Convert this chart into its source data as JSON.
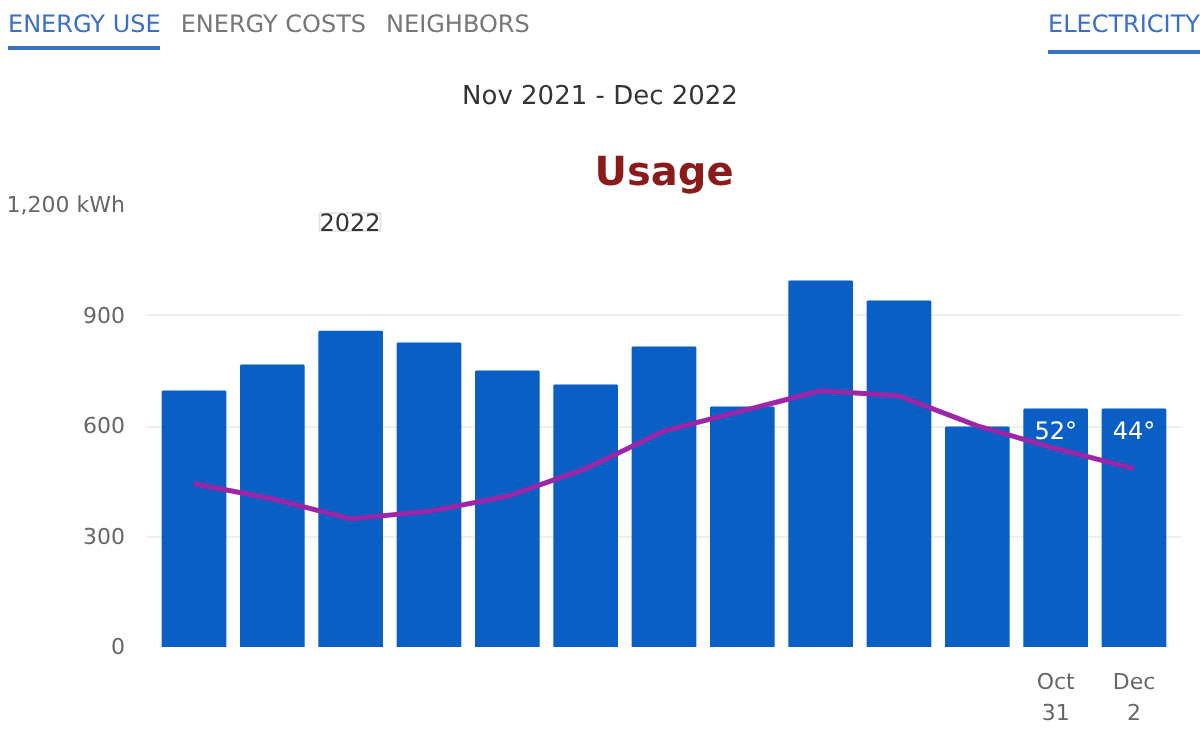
{
  "chart_data": {
    "type": "bar",
    "title": "Usage",
    "subtitle": "Nov 2021 - Dec 2022",
    "annotations": [
      "ENERGY USE",
      "ENERGY COSTS",
      "NEIGHBORS",
      "ELECTRICITY",
      "2022"
    ],
    "categories": [
      null,
      null,
      null,
      null,
      null,
      null,
      null,
      null,
      null,
      null,
      null,
      "Oct\n31",
      "Dec\n2"
    ],
    "series": [
      {
        "color": "#0a5fc4",
        "values": [
          694,
          764,
          856,
          824,
          748,
          710,
          813,
          650,
          992,
          938,
          596,
          645,
          645
        ]
      },
      {
        "type": "line",
        "axis": "y2",
        "color": "#9b27a8",
        "values": [
          38,
          32,
          24,
          27,
          33,
          44,
          59,
          67,
          75,
          73,
          61,
          52,
          44
        ],
        "value_labels": [
          null,
          null,
          null,
          null,
          null,
          null,
          null,
          null,
          null,
          null,
          null,
          "52°",
          "44°"
        ]
      }
    ],
    "ylim": [
      0,
      1200
    ],
    "yticks": [
      0,
      300,
      600,
      900,
      {
        "value": 1200,
        "label": "1,200 kWh"
      }
    ],
    "grid": "y",
    "marker": "none"
  }
}
